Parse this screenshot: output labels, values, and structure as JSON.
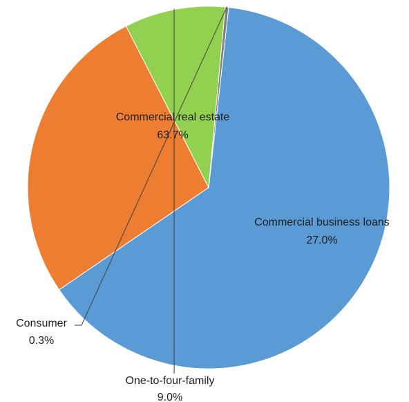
{
  "chart_data": {
    "type": "pie",
    "slices": [
      {
        "label": "Commercial real estate",
        "value": 63.7,
        "value_label": "63.7%",
        "color": "#5B9BD5"
      },
      {
        "label": "Commercial business loans",
        "value": 27.0,
        "value_label": "27.0%",
        "color": "#ED7D31"
      },
      {
        "label": "One-to-four-family",
        "value": 9.0,
        "value_label": "9.0%",
        "color": "#92D050"
      },
      {
        "label": "Consumer",
        "value": 0.3,
        "value_label": "0.3%",
        "color": "#7F7F7F"
      }
    ],
    "legend": "none",
    "data_labels": "label-and-percent"
  }
}
